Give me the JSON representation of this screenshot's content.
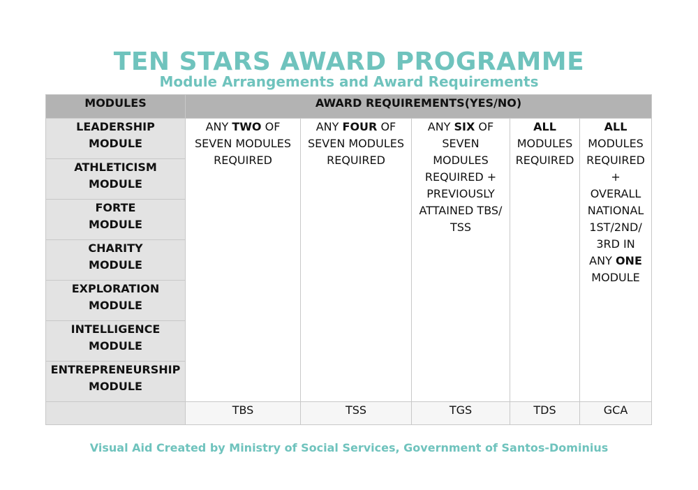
{
  "header": {
    "title": "TEN STARS AWARD PROGRAMME",
    "subtitle": "Module Arrangements and Award Requirements"
  },
  "table": {
    "col_modules": "MODULES",
    "col_requirements": "AWARD REQUIREMENTS(YES/NO)",
    "modules": [
      {
        "name": "LEADERSHIP",
        "suffix": "MODULE"
      },
      {
        "name": "ATHLETICISM",
        "suffix": "MODULE"
      },
      {
        "name": "FORTE",
        "suffix": "MODULE"
      },
      {
        "name": "CHARITY",
        "suffix": "MODULE"
      },
      {
        "name": "EXPLORATION",
        "suffix": "MODULE"
      },
      {
        "name": "INTELLIGENCE",
        "suffix": "MODULE"
      },
      {
        "name": "ENTREPRENEURSHIP",
        "suffix": "MODULE"
      }
    ],
    "requirements": [
      {
        "pre": "ANY ",
        "bold": "TWO",
        "post": " OF",
        "rest": [
          "SEVEN MODULES",
          "REQUIRED"
        ],
        "award": "TBS"
      },
      {
        "pre": "ANY ",
        "bold": "FOUR",
        "post": " OF",
        "rest": [
          "SEVEN MODULES",
          "REQUIRED"
        ],
        "award": "TSS"
      },
      {
        "pre": "ANY ",
        "bold": "SIX",
        "post": " OF",
        "rest": [
          "SEVEN",
          "MODULES",
          "REQUIRED +",
          "PREVIOUSLY",
          "ATTAINED TBS/",
          "TSS"
        ],
        "award": "TGS"
      },
      {
        "pre": "",
        "bold": "ALL",
        "post": "",
        "rest": [
          "MODULES",
          "REQUIRED"
        ],
        "award": "TDS"
      },
      {
        "pre": "",
        "bold": "ALL",
        "post": "",
        "rest": [
          "MODULES",
          "REQUIRED",
          "+",
          "OVERALL",
          "NATIONAL",
          "1ST/2ND/",
          "3RD IN"
        ],
        "tail_pre": "ANY ",
        "tail_bold": "ONE",
        "tail_after": "MODULE",
        "award": "GCA"
      }
    ]
  },
  "footer": {
    "credit": "Visual Aid Created by Ministry of Social Services, Government of Santos-Dominius"
  }
}
